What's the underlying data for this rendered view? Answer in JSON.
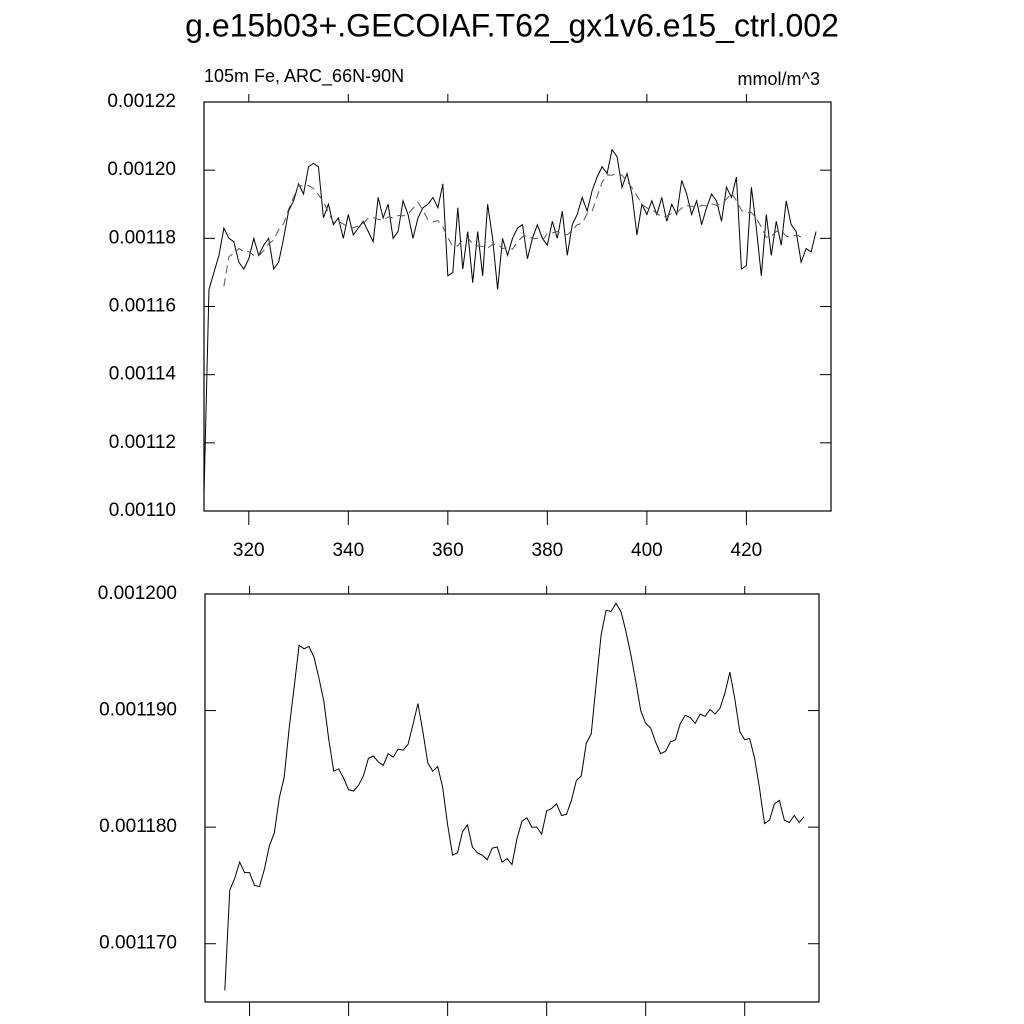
{
  "chart_data": [
    {
      "type": "line",
      "title": "g.e15b03+.GECOIAF.T62_gx1v6.e15_ctrl.002",
      "left_label": "105m Fe, ARC_66N-90N",
      "right_label": "mmol/m^3",
      "xlim": [
        311,
        437
      ],
      "xticks": [
        320,
        340,
        360,
        380,
        400,
        420
      ],
      "ylim": [
        0.0011,
        0.00122
      ],
      "yticks": [
        {
          "value": 0.0011,
          "label": "0.00110"
        },
        0.00112,
        0.00114,
        0.00116,
        0.00118,
        {
          "value": 0.0012,
          "label": "0.00120"
        },
        0.00122
      ],
      "series": [
        {
          "color": "#000000",
          "line_style": "solid",
          "x": [
            311,
            312,
            313,
            314,
            315,
            316,
            317,
            318,
            319,
            320,
            321,
            322,
            323,
            324,
            325,
            326,
            327,
            328,
            329,
            330,
            331,
            332,
            333,
            334,
            335,
            336,
            337,
            338,
            339,
            340,
            341,
            342,
            343,
            344,
            345,
            346,
            347,
            348,
            349,
            350,
            351,
            352,
            353,
            354,
            355,
            356,
            357,
            358,
            359,
            360,
            361,
            362,
            363,
            364,
            365,
            366,
            367,
            368,
            369,
            370,
            371,
            372,
            373,
            374,
            375,
            376,
            377,
            378,
            379,
            380,
            381,
            382,
            383,
            384,
            385,
            386,
            387,
            388,
            389,
            390,
            391,
            392,
            393,
            394,
            395,
            396,
            397,
            398,
            399,
            400,
            401,
            402,
            403,
            404,
            405,
            406,
            407,
            408,
            409,
            410,
            411,
            412,
            413,
            414,
            415,
            416,
            417,
            418,
            419,
            420,
            421,
            422,
            423,
            424,
            425,
            426,
            427,
            428,
            429,
            430,
            431,
            432,
            433,
            434
          ],
          "values": [
            0.001105,
            0.001165,
            0.00117,
            0.001175,
            0.001183,
            0.00118,
            0.001179,
            0.001173,
            0.001171,
            0.001174,
            0.00118,
            0.001175,
            0.001178,
            0.00118,
            0.001171,
            0.001173,
            0.00118,
            0.001188,
            0.001191,
            0.001196,
            0.001193,
            0.001201,
            0.001202,
            0.001201,
            0.001186,
            0.00119,
            0.001184,
            0.001186,
            0.00118,
            0.001187,
            0.001181,
            0.001183,
            0.001185,
            0.001182,
            0.001179,
            0.001192,
            0.001186,
            0.00119,
            0.00118,
            0.001182,
            0.001191,
            0.001187,
            0.00118,
            0.001186,
            0.001189,
            0.00119,
            0.001192,
            0.001189,
            0.001196,
            0.001169,
            0.00117,
            0.001189,
            0.001171,
            0.001182,
            0.001167,
            0.001182,
            0.001169,
            0.00119,
            0.00118,
            0.001165,
            0.00118,
            0.001175,
            0.00118,
            0.001183,
            0.001184,
            0.001174,
            0.00118,
            0.001184,
            0.00118,
            0.001178,
            0.001185,
            0.00118,
            0.001188,
            0.001175,
            0.001184,
            0.001187,
            0.001192,
            0.001188,
            0.001194,
            0.001198,
            0.001201,
            0.001199,
            0.001206,
            0.001204,
            0.001195,
            0.001199,
            0.001193,
            0.001181,
            0.00119,
            0.001187,
            0.001191,
            0.001187,
            0.001192,
            0.001185,
            0.00119,
            0.001187,
            0.001197,
            0.001193,
            0.001187,
            0.001191,
            0.001184,
            0.001189,
            0.001193,
            0.001191,
            0.001185,
            0.001195,
            0.001192,
            0.001198,
            0.001171,
            0.001172,
            0.001195,
            0.001183,
            0.001169,
            0.001187,
            0.001175,
            0.001185,
            0.001178,
            0.001191,
            0.001184,
            0.001182,
            0.001173,
            0.001177,
            0.001176,
            0.001182
          ]
        },
        {
          "color": "#555555",
          "line_style": "dashed",
          "x": [
            315,
            316,
            317,
            318,
            319,
            320,
            321,
            322,
            323,
            324,
            325,
            326,
            327,
            328,
            329,
            330,
            331,
            332,
            333,
            334,
            335,
            336,
            337,
            338,
            339,
            340,
            341,
            342,
            343,
            344,
            345,
            346,
            347,
            348,
            349,
            350,
            351,
            352,
            353,
            354,
            355,
            356,
            357,
            358,
            359,
            360,
            361,
            362,
            363,
            364,
            365,
            366,
            367,
            368,
            369,
            370,
            371,
            372,
            373,
            374,
            375,
            376,
            377,
            378,
            379,
            380,
            381,
            382,
            383,
            384,
            385,
            386,
            387,
            388,
            389,
            390,
            391,
            392,
            393,
            394,
            395,
            396,
            397,
            398,
            399,
            400,
            401,
            402,
            403,
            404,
            405,
            406,
            407,
            408,
            409,
            410,
            411,
            412,
            413,
            414,
            415,
            416,
            417,
            418,
            419,
            420,
            421,
            422,
            423,
            424,
            425,
            426,
            427,
            428,
            429,
            430,
            431,
            432
          ],
          "values": [
            0.001166,
            0.0011746,
            0.0011756,
            0.001177,
            0.0011761,
            0.0011761,
            0.001175,
            0.0011749,
            0.0011764,
            0.0011784,
            0.0011795,
            0.0011825,
            0.0011843,
            0.0011885,
            0.001192,
            0.0011956,
            0.0011953,
            0.0011955,
            0.0011946,
            0.0011928,
            0.0011908,
            0.0011875,
            0.0011848,
            0.001185,
            0.0011842,
            0.0011832,
            0.0011831,
            0.0011836,
            0.0011844,
            0.0011859,
            0.0011861,
            0.0011856,
            0.0011853,
            0.0011863,
            0.001186,
            0.0011867,
            0.0011866,
            0.0011871,
            0.0011888,
            0.0011906,
            0.0011882,
            0.0011855,
            0.0011848,
            0.0011852,
            0.0011834,
            0.0011802,
            0.0011776,
            0.0011778,
            0.0011796,
            0.0011802,
            0.0011783,
            0.0011778,
            0.0011776,
            0.0011772,
            0.0011782,
            0.0011783,
            0.001177,
            0.0011773,
            0.0011768,
            0.001179,
            0.0011805,
            0.0011808,
            0.00118,
            0.00118,
            0.0011794,
            0.0011814,
            0.0011816,
            0.001182,
            0.001181,
            0.0011811,
            0.0011823,
            0.001184,
            0.0011844,
            0.0011872,
            0.001188,
            0.0011923,
            0.0011965,
            0.0011986,
            0.0011985,
            0.0011992,
            0.0011985,
            0.0011968,
            0.0011948,
            0.0011925,
            0.00119,
            0.0011889,
            0.0011885,
            0.0011873,
            0.0011863,
            0.0011865,
            0.0011873,
            0.0011875,
            0.0011889,
            0.0011896,
            0.0011894,
            0.0011889,
            0.0011897,
            0.0011895,
            0.0011901,
            0.0011897,
            0.0011902,
            0.0011915,
            0.0011933,
            0.001191,
            0.0011882,
            0.0011875,
            0.0011876,
            0.0011859,
            0.0011833,
            0.0011803,
            0.0011806,
            0.001182,
            0.0011823,
            0.0011806,
            0.0011804,
            0.001181,
            0.0011804,
            0.0011809
          ]
        }
      ]
    },
    {
      "type": "line",
      "xlim": [
        311,
        435
      ],
      "xticks": [
        320,
        340,
        360,
        380,
        400,
        420
      ],
      "xtick_labels": false,
      "ylim": [
        0.001165,
        0.0012
      ],
      "yticks": [
        {
          "value": 0.00117,
          "label": "0.001170"
        },
        {
          "value": 0.00118,
          "label": "0.001180"
        },
        {
          "value": 0.00119,
          "label": "0.001190"
        },
        {
          "value": 0.0012,
          "label": "0.001200"
        }
      ],
      "series": [
        {
          "color": "#000000",
          "line_style": "solid",
          "x": [
            315,
            316,
            317,
            318,
            319,
            320,
            321,
            322,
            323,
            324,
            325,
            326,
            327,
            328,
            329,
            330,
            331,
            332,
            333,
            334,
            335,
            336,
            337,
            338,
            339,
            340,
            341,
            342,
            343,
            344,
            345,
            346,
            347,
            348,
            349,
            350,
            351,
            352,
            353,
            354,
            355,
            356,
            357,
            358,
            359,
            360,
            361,
            362,
            363,
            364,
            365,
            366,
            367,
            368,
            369,
            370,
            371,
            372,
            373,
            374,
            375,
            376,
            377,
            378,
            379,
            380,
            381,
            382,
            383,
            384,
            385,
            386,
            387,
            388,
            389,
            390,
            391,
            392,
            393,
            394,
            395,
            396,
            397,
            398,
            399,
            400,
            401,
            402,
            403,
            404,
            405,
            406,
            407,
            408,
            409,
            410,
            411,
            412,
            413,
            414,
            415,
            416,
            417,
            418,
            419,
            420,
            421,
            422,
            423,
            424,
            425,
            426,
            427,
            428,
            429,
            430,
            431,
            432
          ],
          "values": [
            0.001166,
            0.0011746,
            0.0011756,
            0.001177,
            0.0011761,
            0.0011761,
            0.001175,
            0.0011749,
            0.0011764,
            0.0011784,
            0.0011795,
            0.0011825,
            0.0011843,
            0.0011885,
            0.001192,
            0.0011956,
            0.0011953,
            0.0011955,
            0.0011946,
            0.0011928,
            0.0011908,
            0.0011875,
            0.0011848,
            0.001185,
            0.0011842,
            0.0011832,
            0.0011831,
            0.0011836,
            0.0011844,
            0.0011859,
            0.0011861,
            0.0011856,
            0.0011853,
            0.0011863,
            0.001186,
            0.0011867,
            0.0011866,
            0.0011871,
            0.0011888,
            0.0011906,
            0.0011882,
            0.0011855,
            0.0011848,
            0.0011852,
            0.0011834,
            0.0011802,
            0.0011776,
            0.0011778,
            0.0011796,
            0.0011802,
            0.0011783,
            0.0011778,
            0.0011776,
            0.0011772,
            0.0011782,
            0.0011783,
            0.001177,
            0.0011773,
            0.0011768,
            0.001179,
            0.0011805,
            0.0011808,
            0.00118,
            0.00118,
            0.0011794,
            0.0011814,
            0.0011816,
            0.001182,
            0.001181,
            0.0011811,
            0.0011823,
            0.001184,
            0.0011844,
            0.0011872,
            0.001188,
            0.0011923,
            0.0011965,
            0.0011986,
            0.0011985,
            0.0011992,
            0.0011985,
            0.0011968,
            0.0011948,
            0.0011925,
            0.00119,
            0.0011889,
            0.0011885,
            0.0011873,
            0.0011863,
            0.0011865,
            0.0011873,
            0.0011875,
            0.0011889,
            0.0011896,
            0.0011894,
            0.0011889,
            0.0011897,
            0.0011895,
            0.0011901,
            0.0011897,
            0.0011902,
            0.0011915,
            0.0011933,
            0.001191,
            0.0011882,
            0.0011875,
            0.0011876,
            0.0011859,
            0.0011833,
            0.0011803,
            0.0011806,
            0.001182,
            0.0011823,
            0.0011806,
            0.0011804,
            0.001181,
            0.0011804,
            0.0011809
          ]
        }
      ]
    }
  ]
}
